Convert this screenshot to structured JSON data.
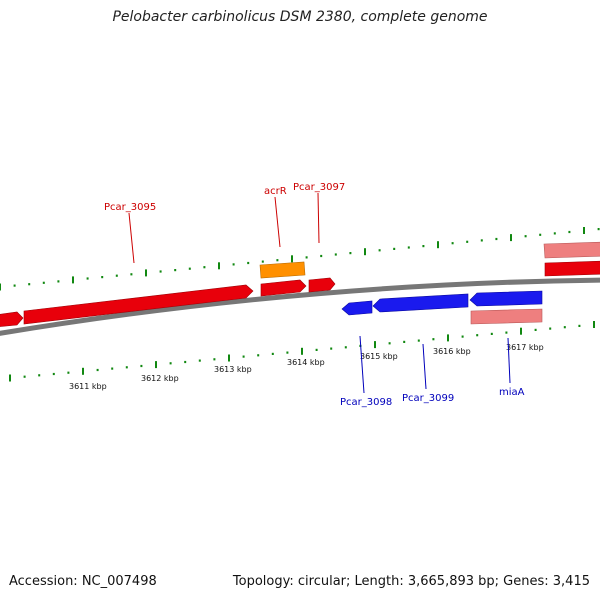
{
  "title": "Pelobacter carbinolicus DSM 2380, complete genome",
  "footer": {
    "accession": "Accession: NC_007498",
    "summary": "Topology: circular; Length: 3,665,893 bp; Genes: 3,415"
  },
  "colors": {
    "forward_gene": "#e8000b",
    "reverse_gene": "#1a1aee",
    "rna_gene": "#ff9000",
    "pseudo_gene": "#ee7f7f",
    "tick": "#118811",
    "backbone": "#777777",
    "label_forward": "#cc0000",
    "label_reverse": "#0000bb"
  },
  "scale_labels": [
    "3611 kbp",
    "3612 kbp",
    "3613 kbp",
    "3614 kbp",
    "3615 kbp",
    "3616 kbp",
    "3617 kbp"
  ],
  "gene_labels": {
    "forward": [
      "Pcar_3095",
      "acrR",
      "Pcar_3097"
    ],
    "reverse": [
      "Pcar_3098",
      "Pcar_3099",
      "miaA"
    ]
  }
}
